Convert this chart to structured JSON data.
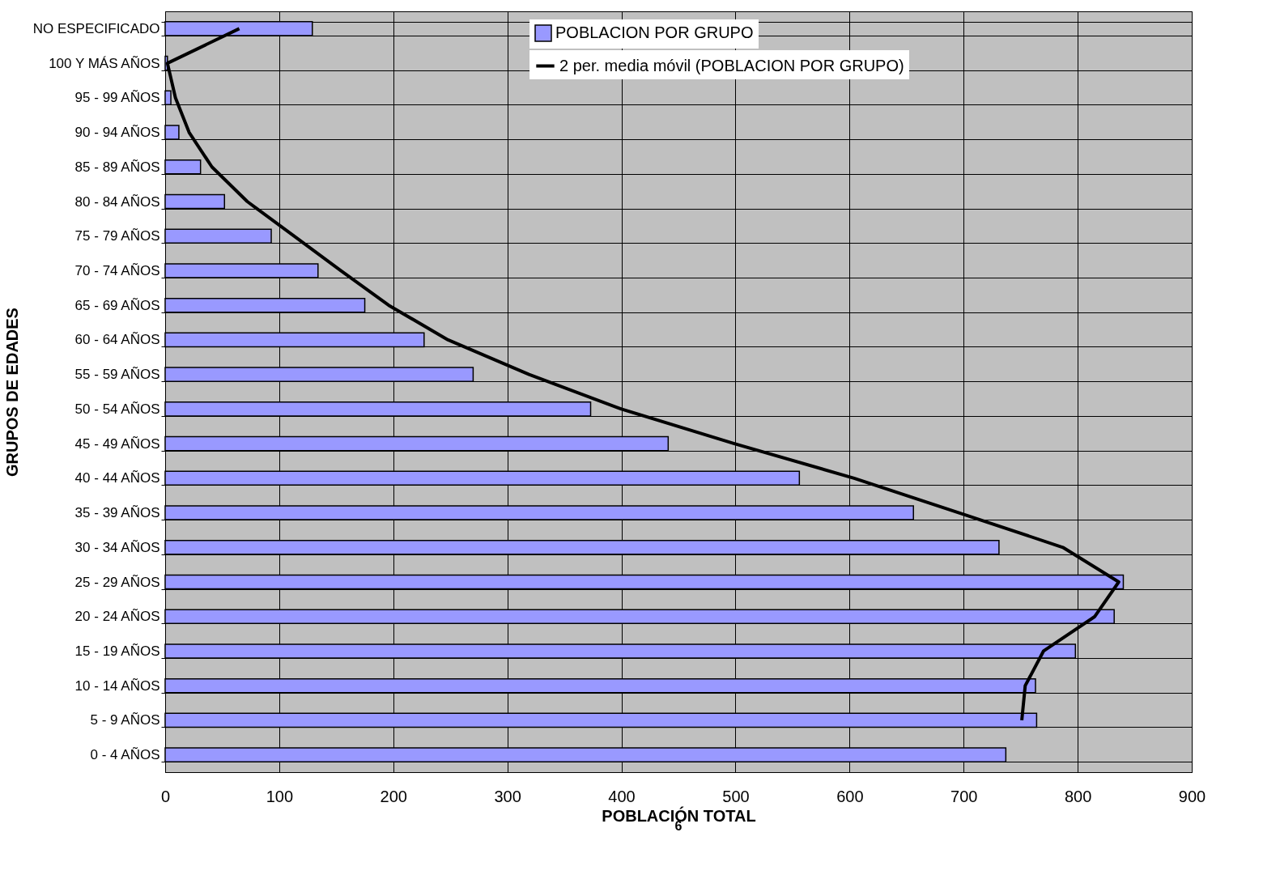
{
  "chart_data": {
    "type": "bar",
    "orientation": "horizontal",
    "xlabel": "POBLACIÓN TOTAL",
    "ylabel": "GRUPOS DE EDADES",
    "categories": [
      "NO ESPECIFICADO",
      "100 Y MÁS AÑOS",
      "95 - 99 AÑOS",
      "90 - 94 AÑOS",
      "85 - 89 AÑOS",
      "80 - 84 AÑOS",
      "75 - 79 AÑOS",
      "70 - 74 AÑOS",
      "65 - 69 AÑOS",
      "60 - 64 AÑOS",
      "55 - 59 AÑOS",
      "50 - 54 AÑOS",
      "45 - 49 AÑOS",
      "40 - 44 AÑOS",
      "35 - 39 AÑOS",
      "30 - 34 AÑOS",
      "25 - 29 AÑOS",
      "20 - 24 AÑOS",
      "15 - 19 AÑOS",
      "10 - 14 AÑOS",
      "5 - 9 AÑOS",
      "0 - 4 AÑOS"
    ],
    "series": [
      {
        "name": "POBLACION POR GRUPO",
        "color": "#9999ff",
        "values": [
          129,
          2,
          5,
          12,
          31,
          52,
          93,
          134,
          175,
          227,
          270,
          373,
          441,
          556,
          656,
          731,
          840,
          832,
          798,
          763,
          764,
          737
        ]
      },
      {
        "name": "2 per. media móvil (POBLACION POR GRUPO)",
        "type": "line",
        "color": "#000000",
        "values": [
          65,
          2,
          9,
          21,
          41,
          72,
          113,
          154,
          196,
          248,
          319,
          400,
          499,
          604,
          696,
          787,
          836,
          815,
          770,
          754,
          751,
          null
        ]
      }
    ],
    "xlim": [
      0,
      900
    ],
    "xticks": [
      0,
      100,
      200,
      300,
      400,
      500,
      600,
      700,
      800,
      900
    ],
    "grid": true,
    "legend": "top right",
    "annotations": [
      "6"
    ]
  }
}
